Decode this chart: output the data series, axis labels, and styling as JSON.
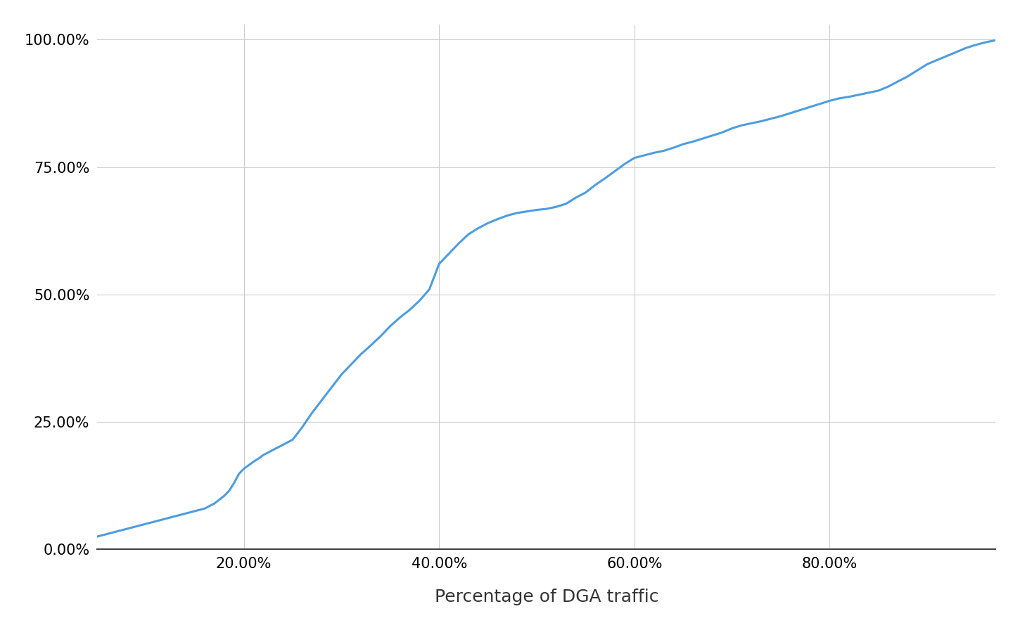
{
  "xlabel": "Percentage of DGA traffic",
  "xlabel_fontsize": 18,
  "line_color": "#4d9de0",
  "line_width": 2.2,
  "background_color": "#ffffff",
  "grid_color": "#cccccc",
  "xlim": [
    0.05,
    0.97
  ],
  "ylim": [
    0.0,
    1.03
  ],
  "xtick_values": [
    0.2,
    0.4,
    0.6,
    0.8
  ],
  "ytick_values": [
    0.0,
    0.25,
    0.5,
    0.75,
    1.0
  ],
  "xtick_labels": [
    "20.00%",
    "40.00%",
    "60.00%",
    "80.00%"
  ],
  "ytick_labels": [
    "0.00%",
    "25.00%",
    "50.00%",
    "75.00%",
    "100.00%"
  ],
  "curve_points_x": [
    0.05,
    0.06,
    0.07,
    0.08,
    0.09,
    0.1,
    0.11,
    0.12,
    0.13,
    0.14,
    0.15,
    0.16,
    0.17,
    0.18,
    0.185,
    0.19,
    0.195,
    0.2,
    0.205,
    0.21,
    0.215,
    0.22,
    0.225,
    0.23,
    0.235,
    0.24,
    0.245,
    0.25,
    0.26,
    0.27,
    0.28,
    0.29,
    0.3,
    0.31,
    0.32,
    0.33,
    0.34,
    0.35,
    0.36,
    0.37,
    0.38,
    0.39,
    0.4,
    0.41,
    0.42,
    0.43,
    0.44,
    0.45,
    0.46,
    0.47,
    0.48,
    0.49,
    0.5,
    0.51,
    0.52,
    0.53,
    0.54,
    0.55,
    0.56,
    0.57,
    0.58,
    0.59,
    0.6,
    0.61,
    0.62,
    0.63,
    0.64,
    0.65,
    0.66,
    0.67,
    0.68,
    0.69,
    0.7,
    0.71,
    0.72,
    0.73,
    0.74,
    0.75,
    0.76,
    0.77,
    0.78,
    0.79,
    0.8,
    0.81,
    0.82,
    0.83,
    0.84,
    0.85,
    0.86,
    0.87,
    0.88,
    0.89,
    0.9,
    0.91,
    0.92,
    0.93,
    0.94,
    0.95,
    0.96,
    0.97
  ],
  "curve_points_y": [
    0.025,
    0.03,
    0.035,
    0.04,
    0.045,
    0.05,
    0.055,
    0.06,
    0.065,
    0.07,
    0.075,
    0.08,
    0.09,
    0.105,
    0.115,
    0.13,
    0.148,
    0.158,
    0.165,
    0.172,
    0.178,
    0.185,
    0.19,
    0.195,
    0.2,
    0.205,
    0.21,
    0.215,
    0.24,
    0.268,
    0.293,
    0.318,
    0.343,
    0.363,
    0.383,
    0.4,
    0.418,
    0.438,
    0.455,
    0.47,
    0.488,
    0.51,
    0.56,
    0.58,
    0.6,
    0.618,
    0.63,
    0.64,
    0.648,
    0.655,
    0.66,
    0.663,
    0.666,
    0.668,
    0.672,
    0.678,
    0.69,
    0.7,
    0.715,
    0.728,
    0.742,
    0.756,
    0.768,
    0.773,
    0.778,
    0.782,
    0.788,
    0.795,
    0.8,
    0.806,
    0.812,
    0.818,
    0.826,
    0.832,
    0.836,
    0.84,
    0.845,
    0.85,
    0.856,
    0.862,
    0.868,
    0.874,
    0.88,
    0.885,
    0.888,
    0.892,
    0.896,
    0.9,
    0.908,
    0.918,
    0.928,
    0.94,
    0.952,
    0.96,
    0.968,
    0.976,
    0.984,
    0.99,
    0.995,
    0.999
  ]
}
